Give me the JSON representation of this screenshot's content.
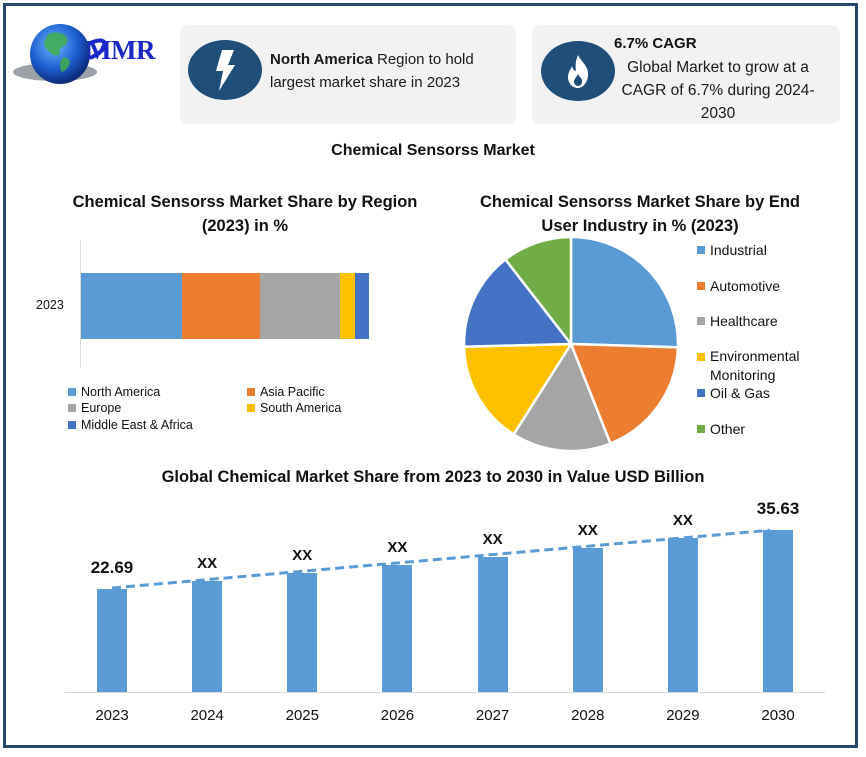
{
  "header": {
    "logo_text": "MMR",
    "card_region": {
      "icon": "lightning-bolt-icon",
      "bold": "North America",
      "text": " Region to hold largest market share in 2023"
    },
    "card_cagr": {
      "icon": "flame-icon",
      "title": "6.7% CAGR",
      "text": "Global Market to grow at a CAGR of 6.7% during 2024-2030"
    }
  },
  "main_title": "Chemical Sensorss Market",
  "colors": {
    "blue": "#5b9bd5",
    "orange": "#ed7d31",
    "gray": "#a5a5a5",
    "yellow": "#ffc000",
    "dark_blue": "#4472c4",
    "green": "#70ad47",
    "frame": "#26496b",
    "icon_bg": "#1f4e79"
  },
  "chart_data": [
    {
      "type": "bar",
      "orientation": "horizontal-stacked",
      "title": "Chemical Sensorss Market Share by Region (2023) in %",
      "categories": [
        "2023"
      ],
      "series": [
        {
          "name": "North America",
          "values": [
            35
          ],
          "color": "#5b9bd5"
        },
        {
          "name": "Asia Pacific",
          "values": [
            27
          ],
          "color": "#ed7d31"
        },
        {
          "name": "Europe",
          "values": [
            28
          ],
          "color": "#a5a5a5"
        },
        {
          "name": "South America",
          "values": [
            5
          ],
          "color": "#ffc000"
        },
        {
          "name": "Middle East & Africa",
          "values": [
            5
          ],
          "color": "#4472c4"
        }
      ],
      "legend_position": "bottom",
      "grid": false
    },
    {
      "type": "pie",
      "title": "Chemical Sensorss Market Share by End User Industry  in % (2023)",
      "categories": [
        "Industrial",
        "Automotive",
        "Healthcare",
        "Environmental Monitoring",
        "Oil & Gas",
        "Other"
      ],
      "values": [
        25.5,
        18.5,
        15.0,
        15.6,
        14.9,
        10.5
      ],
      "colors": [
        "#5b9bd5",
        "#ed7d31",
        "#a5a5a5",
        "#ffc000",
        "#4472c4",
        "#70ad47"
      ],
      "legend_position": "right"
    },
    {
      "type": "bar",
      "title": "Global Chemical Market Share from 2023 to 2030 in Value USD Billion",
      "categories": [
        "2023",
        "2024",
        "2025",
        "2026",
        "2027",
        "2028",
        "2029",
        "2030"
      ],
      "values": [
        22.69,
        24.5,
        26.2,
        28.0,
        29.7,
        31.7,
        33.9,
        35.63
      ],
      "data_labels": [
        "22.69",
        "XX",
        "XX",
        "XX",
        "XX",
        "XX",
        "XX",
        "35.63"
      ],
      "trendline": "linear, dashed",
      "xlabel": "",
      "ylabel": "",
      "ylim": [
        0,
        40
      ],
      "grid": false,
      "color": "#5b9bd5"
    }
  ]
}
